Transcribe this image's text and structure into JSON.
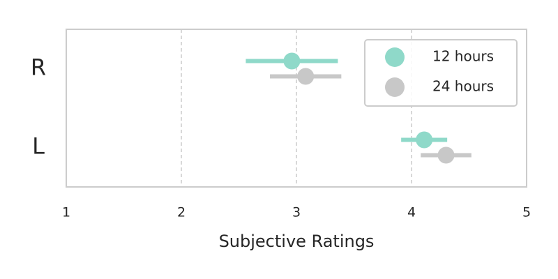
{
  "chart_data": {
    "type": "pointrange",
    "orientation": "horizontal",
    "xlabel": "Subjective Ratings",
    "categories": [
      "R",
      "L"
    ],
    "series": [
      {
        "name": "12 hours",
        "color": "#8fd9c9",
        "values": [
          2.96,
          4.11
        ],
        "errors": [
          0.4,
          0.2
        ]
      },
      {
        "name": "24 hours",
        "color": "#c8c8c8",
        "values": [
          3.08,
          4.3
        ],
        "errors": [
          0.31,
          0.22
        ]
      }
    ],
    "xlim": [
      1,
      5
    ],
    "xticks": [
      1,
      2,
      3,
      4,
      5
    ],
    "grid": true,
    "legend": "upper right"
  }
}
